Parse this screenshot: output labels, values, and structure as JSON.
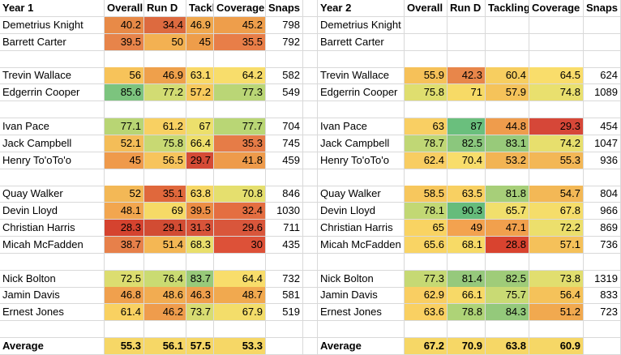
{
  "headers": {
    "left": [
      "Year 1",
      "Overall",
      "Run D",
      "Tackling",
      "Coverage",
      "Snaps"
    ],
    "right": [
      "Year 2",
      "Overall",
      "Run D",
      "Tackling",
      "Coverage",
      "Snaps"
    ]
  },
  "rows": [
    {
      "name": "Demetrius Knight",
      "y1": [
        "40.2",
        "34.4",
        "46.9",
        "45.2",
        "798"
      ],
      "y2": [
        "",
        "",
        "",
        "",
        ""
      ],
      "c1": [
        "#e88a47",
        "#dd6a3f",
        "#f0a84e",
        "#ee9e4b"
      ],
      "c2": [
        "",
        "",
        "",
        ""
      ]
    },
    {
      "name": "Barrett Carter",
      "y1": [
        "39.5",
        "50",
        "45",
        "35.5",
        "792"
      ],
      "y2": [
        "",
        "",
        "",
        "",
        ""
      ],
      "c1": [
        "#e7844a",
        "#f3b152",
        "#ee9d4a",
        "#e87e48"
      ],
      "c2": [
        "",
        "",
        "",
        ""
      ]
    },
    {
      "gap": true
    },
    {
      "name": "Trevin Wallace",
      "y1": [
        "56",
        "46.9",
        "63.1",
        "64.2",
        "582"
      ],
      "y2": [
        "55.9",
        "42.3",
        "60.4",
        "64.5",
        "624"
      ],
      "c1": [
        "#f7c35a",
        "#efa04b",
        "#f9d968",
        "#f8dd6b"
      ],
      "c2": [
        "#f6c159",
        "#e8864a",
        "#f7ce60",
        "#f9dd6b"
      ]
    },
    {
      "name": "Edgerrin Cooper",
      "y1": [
        "85.6",
        "77.2",
        "57.2",
        "77.3",
        "549"
      ],
      "y2": [
        "75.8",
        "71",
        "57.9",
        "74.8",
        "1089"
      ],
      "c1": [
        "#7cc47e",
        "#d2dc73",
        "#f7ca5d",
        "#bad676"
      ],
      "c2": [
        "#dfde6f",
        "#f7da66",
        "#f5c35a",
        "#e9e06e"
      ]
    },
    {
      "gap": true
    },
    {
      "name": "Ivan Pace",
      "y1": [
        "77.1",
        "61.2",
        "67",
        "77.7",
        "704"
      ],
      "y2": [
        "63",
        "87",
        "44.8",
        "29.3",
        "454"
      ],
      "c1": [
        "#b8d574",
        "#f8d062",
        "#ece06c",
        "#b9d675"
      ],
      "c2": [
        "#f9cf63",
        "#6abf7d",
        "#ef9c4c",
        "#d64738"
      ]
    },
    {
      "name": "Jack Campbell",
      "y1": [
        "52.1",
        "75.8",
        "66.4",
        "35.3",
        "745"
      ],
      "y2": [
        "78.7",
        "82.5",
        "83.1",
        "74.2",
        "1047"
      ],
      "c1": [
        "#f4bd58",
        "#c8d973",
        "#eedf6b",
        "#e67c47"
      ],
      "c2": [
        "#c0d775",
        "#8bc77d",
        "#98ca7a",
        "#e7df6d"
      ]
    },
    {
      "name": "Henry To'oTo'o",
      "y1": [
        "45",
        "56.5",
        "29.7",
        "41.8",
        "459"
      ],
      "y2": [
        "62.4",
        "70.4",
        "53.2",
        "55.3",
        "936"
      ],
      "c1": [
        "#ef9a4b",
        "#f7c45c",
        "#d54b36",
        "#ee9b4b"
      ],
      "c2": [
        "#f8cd62",
        "#f8dd6b",
        "#f2b454",
        "#f3b756"
      ]
    },
    {
      "gap": true
    },
    {
      "name": "Quay Walker",
      "y1": [
        "52",
        "35.1",
        "63.8",
        "70.8",
        "846"
      ],
      "y2": [
        "58.5",
        "63.5",
        "81.8",
        "54.7",
        "804"
      ],
      "c1": [
        "#f3b856",
        "#e0683c",
        "#f6d766",
        "#e5df6e"
      ],
      "c2": [
        "#f7c75d",
        "#f8d062",
        "#a7cf79",
        "#f3b856"
      ]
    },
    {
      "name": "Devin Lloyd",
      "y1": [
        "48.1",
        "69",
        "39.5",
        "32.4",
        "1030"
      ],
      "y2": [
        "78.1",
        "90.3",
        "65.7",
        "67.8",
        "966"
      ],
      "c1": [
        "#f2a64f",
        "#f6da66",
        "#ec8d45",
        "#e46e41"
      ],
      "c2": [
        "#c2d874",
        "#66bc7b",
        "#f1df6c",
        "#f5dd6a"
      ]
    },
    {
      "name": "Christian Harris",
      "y1": [
        "28.3",
        "29.1",
        "31.3",
        "29.6",
        "711"
      ],
      "y2": [
        "65",
        "49",
        "47.1",
        "72.2",
        "869"
      ],
      "c1": [
        "#d5432f",
        "#d24c33",
        "#d8543a",
        "#d9563b"
      ],
      "c2": [
        "#f9d362",
        "#f3a24f",
        "#f1a04d",
        "#ecdf6c"
      ]
    },
    {
      "name": "Micah McFadden",
      "y1": [
        "38.7",
        "51.4",
        "68.3",
        "30",
        "435"
      ],
      "y2": [
        "65.6",
        "68.1",
        "28.8",
        "57.1",
        "736"
      ],
      "c1": [
        "#e7804a",
        "#f4b754",
        "#e9df6c",
        "#dd5138"
      ],
      "c2": [
        "#f9d464",
        "#f7da66",
        "#d9432f",
        "#f5c15a"
      ]
    },
    {
      "gap": true
    },
    {
      "name": "Nick Bolton",
      "y1": [
        "72.5",
        "76.4",
        "83.7",
        "64.4",
        "732"
      ],
      "y2": [
        "77.3",
        "81.4",
        "82.5",
        "73.8",
        "1319"
      ],
      "c1": [
        "#dcdd70",
        "#cadb72",
        "#98ca7a",
        "#f8dd6b"
      ],
      "c2": [
        "#c6d974",
        "#96c97c",
        "#9fcc79",
        "#e1de6f"
      ]
    },
    {
      "name": "Jamin Davis",
      "y1": [
        "46.8",
        "48.6",
        "46.3",
        "48.7",
        "581"
      ],
      "y2": [
        "62.9",
        "66.1",
        "75.7",
        "56.4",
        "833"
      ],
      "c1": [
        "#f0a04d",
        "#f2ac51",
        "#f09f4c",
        "#f1a94f"
      ],
      "c2": [
        "#f9ce62",
        "#f7d967",
        "#c9da74",
        "#f5c25a"
      ]
    },
    {
      "name": "Ernest Jones",
      "y1": [
        "61.4",
        "46.2",
        "73.7",
        "67.9",
        "519"
      ],
      "y2": [
        "63.6",
        "78.8",
        "84.3",
        "51.2",
        "723"
      ],
      "c1": [
        "#f9d161",
        "#ef9c4c",
        "#d8dc72",
        "#f3dd6a"
      ],
      "c2": [
        "#f9d062",
        "#aed377",
        "#94c97b",
        "#f1a94f"
      ]
    },
    {
      "gap": true
    },
    {
      "name": "Average",
      "bold": true,
      "y1": [
        "55.3",
        "56.1",
        "57.5",
        "53.3",
        ""
      ],
      "y2": [
        "67.2",
        "70.9",
        "63.8",
        "60.9",
        ""
      ],
      "c1": [
        "#f6d766",
        "#f6d766",
        "#f6d766",
        "#f6d766"
      ],
      "c2": [
        "#f6d766",
        "#f6d766",
        "#f6d766",
        "#f6d766"
      ]
    }
  ]
}
